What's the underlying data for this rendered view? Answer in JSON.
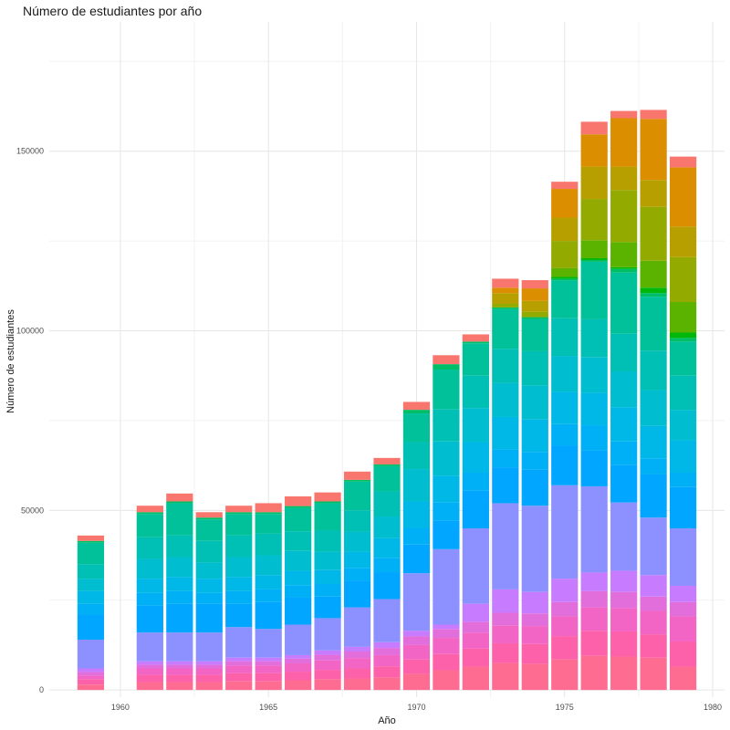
{
  "chart_data": {
    "type": "bar",
    "stacked": true,
    "title": "Número de estudiantes por año",
    "xlabel": "Año",
    "ylabel": "Número de estudiantes",
    "xlim": [
      1957.6,
      1980.4
    ],
    "ylim": [
      -2000,
      186000
    ],
    "x_ticks": [
      1960,
      1965,
      1970,
      1975,
      1980
    ],
    "y_ticks": [
      0,
      50000,
      100000,
      150000
    ],
    "y_tick_labels": [
      "0",
      "50000",
      "100000",
      "150000"
    ],
    "x_tick_labels": [
      "1960",
      "1965",
      "1970",
      "1975",
      "1980"
    ],
    "grid": true,
    "legend": "none",
    "bar_width": 0.9,
    "x": [
      1959,
      1961,
      1962,
      1963,
      1964,
      1965,
      1966,
      1967,
      1968,
      1969,
      1970,
      1971,
      1972,
      1973,
      1974,
      1975,
      1976,
      1977,
      1978,
      1979
    ],
    "series": [
      {
        "color": "#ff6c91",
        "values": [
          1500,
          2200,
          2200,
          2200,
          2500,
          2500,
          2700,
          3000,
          3200,
          3500,
          4500,
          5500,
          6500,
          7500,
          7300,
          8500,
          9500,
          9300,
          9000,
          6500
        ]
      },
      {
        "color": "#fc61aa",
        "values": [
          1500,
          2000,
          2000,
          2000,
          2200,
          2200,
          2400,
          2600,
          2800,
          3100,
          4000,
          4500,
          5000,
          5500,
          5500,
          6500,
          7000,
          7000,
          6500,
          7000
        ]
      },
      {
        "color": "#f265c4",
        "values": [
          1000,
          1800,
          1800,
          1800,
          2100,
          2100,
          2300,
          2600,
          2900,
          3100,
          4000,
          4500,
          4500,
          5000,
          5000,
          5500,
          6500,
          6500,
          6500,
          7000
        ]
      },
      {
        "color": "#e26edc",
        "values": [
          1000,
          1000,
          1000,
          1000,
          1200,
          1200,
          1300,
          1600,
          1800,
          2000,
          2500,
          2500,
          3000,
          3500,
          3500,
          4000,
          4500,
          4500,
          4000,
          4000
        ]
      },
      {
        "color": "#c77cff",
        "values": [
          1000,
          1000,
          1000,
          1000,
          1000,
          1000,
          1000,
          1200,
          1300,
          1600,
          1500,
          1200,
          5000,
          6500,
          6000,
          6500,
          5200,
          5900,
          6000,
          4500
        ]
      },
      {
        "color": "#8d90ff",
        "values": [
          8000,
          8000,
          8000,
          8000,
          8500,
          8000,
          8500,
          9000,
          11000,
          12000,
          16000,
          21000,
          21000,
          24000,
          24000,
          26000,
          24000,
          19000,
          16000,
          16000
        ]
      },
      {
        "color": "#00a6ff",
        "values": [
          7000,
          7500,
          8000,
          8000,
          6500,
          7500,
          7500,
          6000,
          7500,
          7500,
          8000,
          8000,
          10500,
          10000,
          10000,
          11000,
          10000,
          10500,
          12000,
          11500
        ]
      },
      {
        "color": "#00b0f6",
        "values": [
          3000,
          3500,
          3500,
          3000,
          3500,
          3500,
          3500,
          3500,
          3500,
          4000,
          4500,
          5000,
          5000,
          5000,
          5000,
          6000,
          7000,
          6500,
          4500,
          4000
        ]
      },
      {
        "color": "#00b8e7",
        "values": [
          3500,
          4000,
          4000,
          4000,
          4000,
          4000,
          4000,
          4000,
          4500,
          5500,
          7500,
          7500,
          8500,
          9000,
          9000,
          9000,
          9000,
          9500,
          9000,
          9000
        ]
      },
      {
        "color": "#00bdd0",
        "values": [
          3500,
          5500,
          5500,
          4500,
          5500,
          5500,
          5500,
          5000,
          5500,
          6000,
          9000,
          9500,
          9500,
          9500,
          9500,
          10000,
          10000,
          10000,
          10000,
          8500
        ]
      },
      {
        "color": "#00c0b5",
        "values": [
          4000,
          6000,
          6000,
          6000,
          6000,
          6000,
          5500,
          6000,
          6000,
          7000,
          7500,
          9000,
          9000,
          9500,
          9500,
          10500,
          10500,
          10500,
          11000,
          9500
        ]
      },
      {
        "color": "#00c19a",
        "values": [
          6000,
          6500,
          9000,
          6000,
          6000,
          5500,
          6500,
          7500,
          8000,
          7000,
          8000,
          11000,
          9000,
          11000,
          9000,
          10500,
          16000,
          17000,
          15000,
          9500
        ]
      },
      {
        "color": "#00be67",
        "values": [
          500,
          500,
          500,
          500,
          500,
          500,
          500,
          500,
          500,
          500,
          1000,
          1500,
          500,
          500,
          500,
          500,
          500,
          1000,
          1000,
          1000
        ]
      },
      {
        "color": "#00b70c",
        "values": [
          0,
          0,
          0,
          0,
          0,
          0,
          0,
          0,
          0,
          0,
          0,
          0,
          0,
          0,
          0,
          500,
          500,
          500,
          1500,
          1500
        ]
      },
      {
        "color": "#5bb300",
        "values": [
          0,
          0,
          0,
          0,
          0,
          0,
          0,
          0,
          0,
          0,
          0,
          0,
          0,
          0,
          0,
          2500,
          5000,
          7000,
          7500,
          8500
        ]
      },
      {
        "color": "#93aa00",
        "values": [
          0,
          0,
          0,
          0,
          0,
          0,
          0,
          0,
          0,
          0,
          0,
          0,
          0,
          1000,
          1500,
          7500,
          11500,
          14500,
          15000,
          12500
        ]
      },
      {
        "color": "#b79f00",
        "values": [
          0,
          0,
          0,
          0,
          0,
          0,
          0,
          0,
          0,
          0,
          0,
          0,
          0,
          3000,
          3000,
          6500,
          9000,
          6500,
          7500,
          8500
        ]
      },
      {
        "color": "#db8e00",
        "values": [
          0,
          0,
          0,
          0,
          0,
          0,
          0,
          0,
          0,
          0,
          0,
          0,
          0,
          1500,
          3500,
          8000,
          9000,
          13500,
          17000,
          16500
        ]
      },
      {
        "color": "#f8766d",
        "values": [
          1500,
          1800,
          2200,
          1500,
          1800,
          2500,
          2700,
          2500,
          2300,
          1800,
          2200,
          2500,
          2000,
          2500,
          2300,
          2000,
          3500,
          2000,
          2500,
          3000
        ]
      }
    ]
  }
}
